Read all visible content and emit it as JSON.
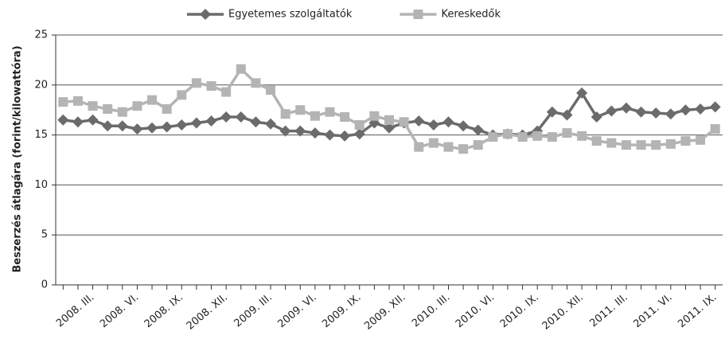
{
  "chart_data": {
    "type": "line",
    "y_label": "Beszerzés átlagára (forint/kilowattóra)",
    "categories": [
      null,
      null,
      "2008. III.",
      null,
      null,
      "2008. VI.",
      null,
      null,
      "2008. IX.",
      null,
      null,
      "2008. XII.",
      null,
      null,
      "2009. III.",
      null,
      null,
      "2009. VI.",
      null,
      null,
      "2009. IX.",
      null,
      null,
      "2009. XII.",
      null,
      null,
      "2010. III.",
      null,
      null,
      "2010. VI.",
      null,
      null,
      "2010. IX.",
      null,
      null,
      "2010. XII.",
      null,
      null,
      "2011. III.",
      null,
      null,
      "2011. VI.",
      null,
      null,
      "2011. IX."
    ],
    "series": [
      {
        "name": "Egyetemes szolgáltatók",
        "color": "#6b6b6b",
        "marker": "diamond",
        "values": [
          16.5,
          16.3,
          16.5,
          15.9,
          15.9,
          15.6,
          15.7,
          15.8,
          16.0,
          16.2,
          16.4,
          16.8,
          16.8,
          16.3,
          16.1,
          15.4,
          15.4,
          15.2,
          15.0,
          14.9,
          15.1,
          16.2,
          15.7,
          16.2,
          16.4,
          16.0,
          16.3,
          15.9,
          15.5,
          15.0,
          15.1,
          15.0,
          15.4,
          17.3,
          17.0,
          19.2,
          16.8,
          17.4,
          17.7,
          17.3,
          17.2,
          17.1,
          17.5,
          17.6,
          17.8
        ]
      },
      {
        "name": "Kereskedők",
        "color": "#b4b4b4",
        "marker": "square",
        "values": [
          18.3,
          18.4,
          17.9,
          17.6,
          17.3,
          17.9,
          18.5,
          17.6,
          19.0,
          20.2,
          19.9,
          19.3,
          21.6,
          20.2,
          19.5,
          17.1,
          17.5,
          16.9,
          17.3,
          16.8,
          16.0,
          16.9,
          16.5,
          16.3,
          13.8,
          14.2,
          13.8,
          13.6,
          14.0,
          14.8,
          15.1,
          14.8,
          14.9,
          14.8,
          15.2,
          14.9,
          14.4,
          14.2,
          14.0,
          14.0,
          14.0,
          14.1,
          14.4,
          14.5,
          15.6
        ]
      }
    ],
    "ylim": [
      0,
      25
    ],
    "yticks": [
      0,
      5,
      10,
      15,
      20,
      25
    ],
    "grid": true,
    "legend": "top"
  }
}
